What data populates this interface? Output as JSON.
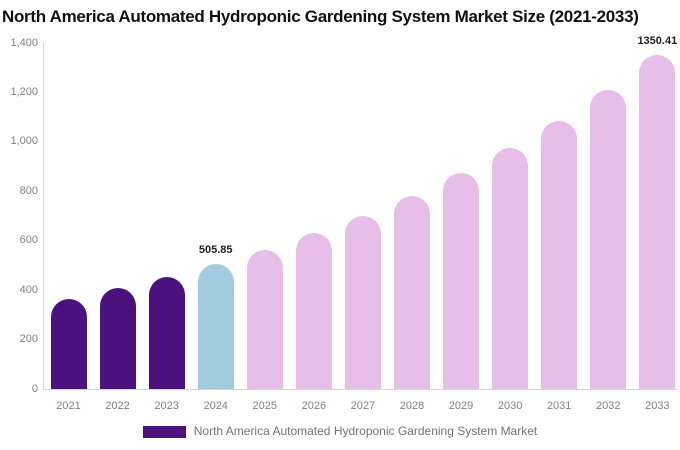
{
  "title": "North America Automated Hydroponic Gardening System Market Size (2021-2033)",
  "chart_data": {
    "type": "bar",
    "title": "North America Automated Hydroponic Gardening System Market Size (2021-2033)",
    "xlabel": "",
    "ylabel": "",
    "ylim": [
      0,
      1400
    ],
    "grid": false,
    "legend_position": "bottom-center",
    "y_ticks": [
      {
        "value": 0,
        "label": "0"
      },
      {
        "value": 200,
        "label": "200"
      },
      {
        "value": 400,
        "label": "400"
      },
      {
        "value": 600,
        "label": "600"
      },
      {
        "value": 800,
        "label": "800"
      },
      {
        "value": 1000,
        "label": "1,000"
      },
      {
        "value": 1200,
        "label": "1,200"
      },
      {
        "value": 1400,
        "label": "1,400"
      }
    ],
    "points": [
      {
        "year": "2021",
        "value": 364.7,
        "segment": "historical",
        "label": ""
      },
      {
        "year": "2022",
        "value": 406.7,
        "segment": "historical",
        "label": ""
      },
      {
        "year": "2023",
        "value": 453.6,
        "segment": "historical",
        "label": ""
      },
      {
        "year": "2024",
        "value": 505.85,
        "segment": "current",
        "label": "505.85"
      },
      {
        "year": "2025",
        "value": 564.2,
        "segment": "forecast",
        "label": ""
      },
      {
        "year": "2026",
        "value": 629.2,
        "segment": "forecast",
        "label": ""
      },
      {
        "year": "2027",
        "value": 701.7,
        "segment": "forecast",
        "label": ""
      },
      {
        "year": "2028",
        "value": 782.6,
        "segment": "forecast",
        "label": ""
      },
      {
        "year": "2029",
        "value": 872.9,
        "segment": "forecast",
        "label": ""
      },
      {
        "year": "2030",
        "value": 973.5,
        "segment": "forecast",
        "label": ""
      },
      {
        "year": "2031",
        "value": 1085.8,
        "segment": "forecast",
        "label": ""
      },
      {
        "year": "2032",
        "value": 1211.0,
        "segment": "forecast",
        "label": ""
      },
      {
        "year": "2033",
        "value": 1350.41,
        "segment": "forecast",
        "label": "1350.41"
      }
    ],
    "colors": {
      "historical": "#4B127D",
      "current": "#A2CBE0",
      "forecast": "#E7BEE7"
    }
  },
  "legend": {
    "swatch_color": "#4B127D",
    "label": "North America Automated Hydroponic Gardening System Market"
  }
}
